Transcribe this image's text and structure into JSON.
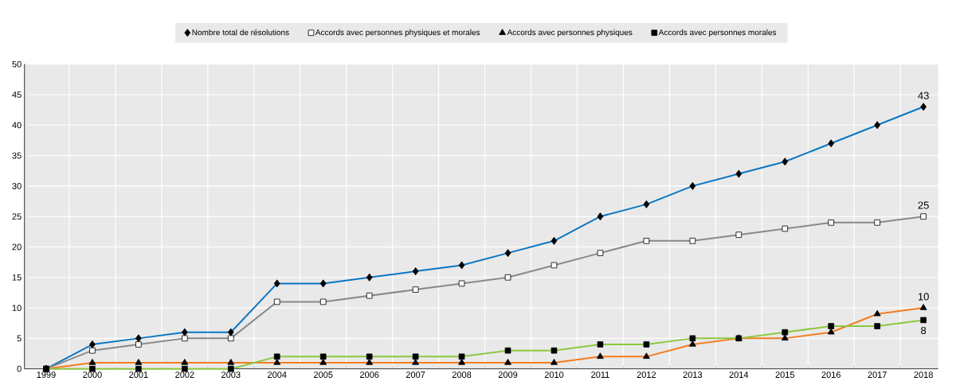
{
  "chart_data": {
    "type": "line",
    "categories": [
      "1999",
      "2000",
      "2001",
      "2002",
      "2003",
      "2004",
      "2005",
      "2006",
      "2007",
      "2008",
      "2009",
      "2010",
      "2011",
      "2012",
      "2013",
      "2014",
      "2015",
      "2016",
      "2017",
      "2018"
    ],
    "series": [
      {
        "name": "Nombre total de résolutions",
        "color": "#0a77c2",
        "marker": "diamond",
        "values": [
          0,
          4,
          5,
          6,
          6,
          14,
          14,
          15,
          16,
          17,
          19,
          21,
          25,
          27,
          30,
          32,
          34,
          37,
          40,
          43
        ],
        "value_labels": [
          null,
          null,
          null,
          null,
          null,
          null,
          null,
          null,
          null,
          null,
          null,
          null,
          null,
          null,
          null,
          null,
          null,
          null,
          null,
          "43"
        ]
      },
      {
        "name": "Accords avec personnes physiques et morales",
        "color": "#898989",
        "marker": "square",
        "values": [
          0,
          3,
          4,
          5,
          5,
          11,
          11,
          12,
          13,
          14,
          15,
          17,
          19,
          21,
          21,
          22,
          23,
          24,
          24,
          25
        ],
        "value_labels": [
          null,
          null,
          null,
          null,
          null,
          null,
          null,
          null,
          null,
          null,
          null,
          null,
          null,
          null,
          null,
          null,
          null,
          null,
          null,
          "25"
        ]
      },
      {
        "name": "Accords avec personnes physiques",
        "color": "#f47c20",
        "marker": "triangle",
        "values": [
          0,
          1,
          1,
          1,
          1,
          1,
          1,
          1,
          1,
          1,
          1,
          1,
          2,
          2,
          4,
          5,
          5,
          6,
          9,
          10
        ],
        "value_labels": [
          null,
          null,
          null,
          null,
          null,
          null,
          null,
          null,
          null,
          null,
          null,
          null,
          null,
          null,
          null,
          null,
          null,
          null,
          null,
          "10"
        ]
      },
      {
        "name": "Accords avec personnes morales",
        "color": "#8cc841",
        "marker": "square",
        "values": [
          0,
          0,
          0,
          0,
          0,
          2,
          2,
          2,
          2,
          2,
          3,
          3,
          4,
          4,
          5,
          5,
          6,
          7,
          7,
          8
        ],
        "value_labels": [
          null,
          null,
          null,
          null,
          null,
          null,
          null,
          null,
          null,
          null,
          null,
          null,
          null,
          null,
          null,
          null,
          null,
          null,
          null,
          "8"
        ]
      }
    ],
    "ylim": [
      0,
      50
    ],
    "yticks": [
      0,
      5,
      10,
      15,
      20,
      25,
      30,
      35,
      40,
      45,
      50
    ],
    "grid": true,
    "legend": "top",
    "line_style": "solid"
  }
}
